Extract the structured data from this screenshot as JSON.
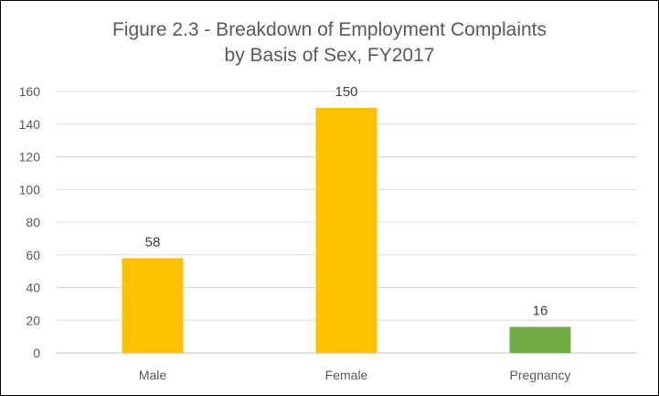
{
  "chart_data": {
    "type": "bar",
    "title_line1": "Figure 2.3 - Breakdown of Employment Complaints",
    "title_line2": "by Basis of Sex, FY2017",
    "categories": [
      "Male",
      "Female",
      "Pregnancy"
    ],
    "values": [
      58,
      150,
      16
    ],
    "bar_colors": [
      "#FFC000",
      "#FFC000",
      "#70AD47"
    ],
    "ylim": [
      0,
      160
    ],
    "yticks": [
      0,
      20,
      40,
      60,
      80,
      100,
      120,
      140,
      160
    ],
    "grid": true,
    "data_labels": true,
    "legend": "none"
  }
}
